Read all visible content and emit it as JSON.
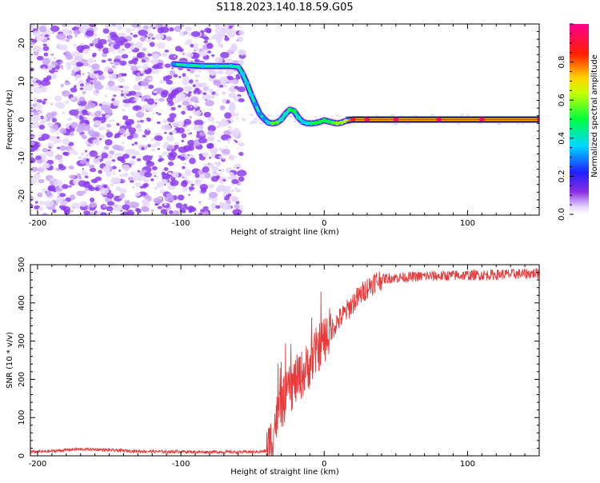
{
  "figure": {
    "title": "S118.2023.140.18.59.G05"
  },
  "colors": {
    "snr_line": "#e83a3a",
    "axis": "#000000",
    "background": "#ffffff"
  },
  "chart_data": [
    {
      "type": "heatmap",
      "title": "",
      "xlabel": "Height of straight line (km)",
      "ylabel": "Frequency (Hz)",
      "xlim": [
        -205,
        150
      ],
      "ylim": [
        -25,
        25
      ],
      "xticks": [
        -200,
        -100,
        0,
        100
      ],
      "xtick_labels": [
        "-200",
        "-100",
        "0",
        "100"
      ],
      "yticks": [
        -20,
        -10,
        0,
        10,
        20
      ],
      "ytick_labels": [
        "-20",
        "-10",
        "0",
        "10",
        "20"
      ],
      "colorbar": {
        "label": "Normalized spectral amplitude",
        "range": [
          0,
          1
        ],
        "ticks": [
          0.0,
          0.2,
          0.4,
          0.6,
          0.8
        ],
        "tick_labels": [
          "0.0",
          "0.2",
          "0.4",
          "0.6",
          "0.8"
        ],
        "colormap": "rainbow (white-violet-blue-cyan-green-yellow-red-magenta)"
      },
      "ridge": {
        "x": [
          -105,
          -95,
          -85,
          -75,
          -65,
          -60,
          -57,
          -54,
          -51,
          -48,
          -45,
          -42,
          -39,
          -36,
          -33,
          -30,
          -27,
          -24,
          -21,
          -18,
          -15,
          -12,
          -9,
          -6,
          -3,
          0,
          3,
          6,
          9,
          12,
          15,
          20,
          30,
          50,
          80,
          110,
          150
        ],
        "y": [
          14.5,
          14.2,
          14.0,
          14.0,
          14.0,
          13.8,
          12.0,
          9.5,
          6.5,
          4.0,
          1.5,
          0.2,
          -0.8,
          -1.0,
          -0.8,
          0.0,
          1.5,
          2.6,
          2.2,
          0.5,
          -0.6,
          -1.0,
          -1.0,
          -0.9,
          -0.6,
          -0.2,
          -0.5,
          -0.8,
          -1.0,
          -0.8,
          -0.4,
          0.0,
          0.0,
          0.0,
          0.0,
          0.0,
          0.0
        ],
        "intensity": [
          0.3,
          0.35,
          0.35,
          0.35,
          0.4,
          0.4,
          0.35,
          0.35,
          0.35,
          0.3,
          0.3,
          0.3,
          0.35,
          0.55,
          0.55,
          0.4,
          0.4,
          0.5,
          0.5,
          0.4,
          0.35,
          0.4,
          0.45,
          0.5,
          0.5,
          0.5,
          0.5,
          0.55,
          0.6,
          0.6,
          0.65,
          0.9,
          0.95,
          0.95,
          0.95,
          0.95,
          0.95
        ]
      },
      "noise_region_x": [
        -205,
        -57
      ]
    },
    {
      "type": "line",
      "title": "",
      "xlabel": "Height of straight line (km)",
      "ylabel": "SNR (10 * v/v)",
      "xlim": [
        -205,
        150
      ],
      "ylim": [
        0,
        500
      ],
      "xticks": [
        -200,
        -100,
        0,
        100
      ],
      "xtick_labels": [
        "-200",
        "-100",
        "0",
        "100"
      ],
      "yticks": [
        0,
        100,
        200,
        300,
        400,
        500
      ],
      "ytick_labels": [
        "0",
        "100",
        "200",
        "300",
        "400",
        "500"
      ],
      "series": [
        {
          "x": [
            -205,
            -190,
            -175,
            -160,
            -145,
            -130,
            -115,
            -100,
            -85,
            -70,
            -60,
            -50,
            -45,
            -40,
            -37,
            -34,
            -30,
            -26,
            -22,
            -18,
            -15,
            -12,
            -9,
            -6,
            -3,
            0,
            5,
            10,
            15,
            20,
            25,
            30,
            35,
            40,
            45,
            50,
            60,
            70,
            80,
            90,
            100,
            110,
            120,
            130,
            140,
            150
          ],
          "y": [
            10,
            12,
            17,
            17,
            14,
            12,
            11,
            11,
            10,
            10,
            10,
            10,
            11,
            12,
            40,
            90,
            130,
            160,
            185,
            205,
            215,
            230,
            250,
            270,
            290,
            305,
            330,
            355,
            375,
            400,
            420,
            440,
            455,
            462,
            465,
            466,
            468,
            470,
            470,
            472,
            472,
            473,
            474,
            475,
            476,
            478
          ]
        }
      ]
    }
  ]
}
